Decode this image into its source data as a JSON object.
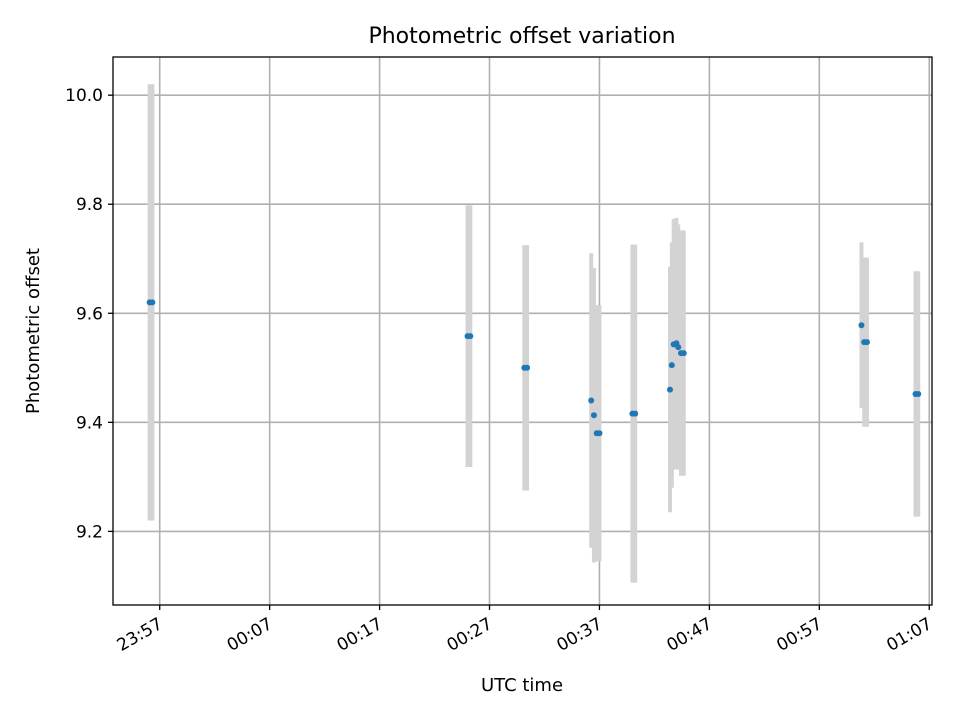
{
  "chart_data": {
    "type": "scatter",
    "title": "Photometric offset variation",
    "xlabel": "UTC time",
    "ylabel": "Photometric offset",
    "x_tick_labels": [
      "23:57",
      "00:07",
      "00:17",
      "00:27",
      "00:37",
      "00:47",
      "00:57",
      "01:07"
    ],
    "y_ticks": [
      9.2,
      9.4,
      9.6,
      9.8,
      10.0
    ],
    "y_tick_labels": [
      "9.2",
      "9.4",
      "9.6",
      "9.8",
      "10.0"
    ],
    "xlim": [
      "23:52:45",
      "01:07:15"
    ],
    "ylim": [
      9.065,
      10.07
    ],
    "grid": true,
    "marker_color": "#1f77b4",
    "errorbar_color": "#d3d3d3",
    "points": [
      {
        "x": "23:56:05",
        "y": 9.62,
        "err": 0.4
      },
      {
        "x": "23:56:20",
        "y": 9.62,
        "err": 0.4
      },
      {
        "x": "00:25:00",
        "y": 9.558,
        "err": 0.24
      },
      {
        "x": "00:25:15",
        "y": 9.558,
        "err": 0.24
      },
      {
        "x": "00:30:10",
        "y": 9.5,
        "err": 0.225
      },
      {
        "x": "00:30:25",
        "y": 9.5,
        "err": 0.225
      },
      {
        "x": "00:36:15",
        "y": 9.44,
        "err": 0.27
      },
      {
        "x": "00:36:30",
        "y": 9.413,
        "err": 0.27
      },
      {
        "x": "00:36:45",
        "y": 9.38,
        "err": 0.235
      },
      {
        "x": "00:37:00",
        "y": 9.38,
        "err": 0.235
      },
      {
        "x": "00:40:00",
        "y": 9.416,
        "err": 0.31
      },
      {
        "x": "00:40:15",
        "y": 9.416,
        "err": 0.31
      },
      {
        "x": "00:43:25",
        "y": 9.46,
        "err": 0.225
      },
      {
        "x": "00:43:35",
        "y": 9.505,
        "err": 0.225
      },
      {
        "x": "00:43:45",
        "y": 9.543,
        "err": 0.23
      },
      {
        "x": "00:44:00",
        "y": 9.545,
        "err": 0.23
      },
      {
        "x": "00:44:10",
        "y": 9.538,
        "err": 0.225
      },
      {
        "x": "00:44:25",
        "y": 9.527,
        "err": 0.225
      },
      {
        "x": "00:44:40",
        "y": 9.527,
        "err": 0.225
      },
      {
        "x": "01:00:50",
        "y": 9.578,
        "err": 0.152
      },
      {
        "x": "01:01:05",
        "y": 9.547,
        "err": 0.155
      },
      {
        "x": "01:01:20",
        "y": 9.547,
        "err": 0.155
      },
      {
        "x": "01:05:45",
        "y": 9.452,
        "err": 0.225
      },
      {
        "x": "01:06:00",
        "y": 9.452,
        "err": 0.225
      }
    ]
  }
}
